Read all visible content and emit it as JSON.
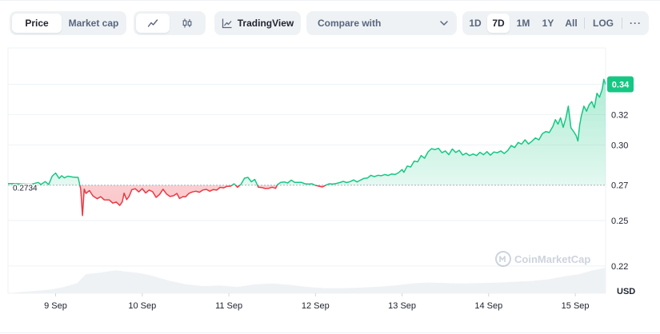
{
  "toolbar": {
    "price_label": "Price",
    "market_cap_label": "Market cap",
    "tradingview_label": "TradingView",
    "compare_label": "Compare with",
    "ranges": [
      "1D",
      "7D",
      "1M",
      "1Y",
      "All"
    ],
    "active_range": "7D",
    "log_label": "LOG",
    "more_label": "···",
    "icons": {
      "line": "line-chart-icon",
      "candle": "candlestick-icon",
      "tradingview": "tradingview-chart-icon",
      "dropdown": "chevron-down-icon"
    }
  },
  "watermark": "CoinMarketCap",
  "chart_data": {
    "type": "area",
    "currency_label": "USD",
    "baseline_label": "0.2734",
    "baseline": 0.2734,
    "current_label": "0.34",
    "ylim": [
      0.202,
      0.364
    ],
    "y_ticks": [
      {
        "value": 0.34,
        "label": "0.34"
      },
      {
        "value": 0.32,
        "label": "0.32"
      },
      {
        "value": 0.3,
        "label": "0.30"
      },
      {
        "value": 0.2734,
        "label": "0.27"
      },
      {
        "value": 0.25,
        "label": "0.25"
      },
      {
        "value": 0.22,
        "label": "0.22"
      }
    ],
    "x_ticks": [
      "9 Sep",
      "10 Sep",
      "11 Sep",
      "12 Sep",
      "13 Sep",
      "14 Sep",
      "15 Sep"
    ],
    "x_tick_pos": [
      0.5,
      1.5,
      2.5,
      3.5,
      4.5,
      5.5,
      6.5
    ],
    "xlim": [
      -0.05,
      6.85
    ],
    "price": [
      [
        -0.05,
        0.2744
      ],
      [
        0.0,
        0.2744
      ],
      [
        0.12,
        0.2742
      ],
      [
        0.22,
        0.274
      ],
      [
        0.3,
        0.2752
      ],
      [
        0.33,
        0.2738
      ],
      [
        0.38,
        0.2757
      ],
      [
        0.42,
        0.2738
      ],
      [
        0.46,
        0.2793
      ],
      [
        0.5,
        0.2814
      ],
      [
        0.54,
        0.2779
      ],
      [
        0.57,
        0.2796
      ],
      [
        0.6,
        0.2782
      ],
      [
        0.64,
        0.2793
      ],
      [
        0.7,
        0.2787
      ],
      [
        0.76,
        0.2785
      ],
      [
        0.79,
        0.2707
      ],
      [
        0.81,
        0.2533
      ],
      [
        0.83,
        0.2708
      ],
      [
        0.85,
        0.2679
      ],
      [
        0.89,
        0.2698
      ],
      [
        0.93,
        0.2663
      ],
      [
        0.98,
        0.2644
      ],
      [
        1.02,
        0.2658
      ],
      [
        1.06,
        0.2637
      ],
      [
        1.12,
        0.2636
      ],
      [
        1.16,
        0.2615
      ],
      [
        1.2,
        0.2622
      ],
      [
        1.24,
        0.26
      ],
      [
        1.27,
        0.2624
      ],
      [
        1.29,
        0.2681
      ],
      [
        1.32,
        0.2638
      ],
      [
        1.35,
        0.2662
      ],
      [
        1.38,
        0.2704
      ],
      [
        1.42,
        0.271
      ],
      [
        1.46,
        0.2689
      ],
      [
        1.5,
        0.2711
      ],
      [
        1.54,
        0.2682
      ],
      [
        1.58,
        0.2702
      ],
      [
        1.62,
        0.269
      ],
      [
        1.66,
        0.2653
      ],
      [
        1.7,
        0.2673
      ],
      [
        1.74,
        0.2707
      ],
      [
        1.78,
        0.2676
      ],
      [
        1.82,
        0.2659
      ],
      [
        1.86,
        0.2664
      ],
      [
        1.9,
        0.2679
      ],
      [
        1.93,
        0.2646
      ],
      [
        1.97,
        0.2658
      ],
      [
        2.0,
        0.2657
      ],
      [
        2.04,
        0.268
      ],
      [
        2.08,
        0.2689
      ],
      [
        2.12,
        0.2694
      ],
      [
        2.16,
        0.2687
      ],
      [
        2.2,
        0.2702
      ],
      [
        2.24,
        0.2706
      ],
      [
        2.28,
        0.2694
      ],
      [
        2.32,
        0.2705
      ],
      [
        2.36,
        0.2701
      ],
      [
        2.4,
        0.2719
      ],
      [
        2.44,
        0.2716
      ],
      [
        2.48,
        0.2726
      ],
      [
        2.52,
        0.2727
      ],
      [
        2.56,
        0.2743
      ],
      [
        2.6,
        0.272
      ],
      [
        2.64,
        0.2739
      ],
      [
        2.68,
        0.278
      ],
      [
        2.72,
        0.2785
      ],
      [
        2.76,
        0.2756
      ],
      [
        2.8,
        0.2772
      ],
      [
        2.84,
        0.272
      ],
      [
        2.88,
        0.2718
      ],
      [
        2.92,
        0.2712
      ],
      [
        2.96,
        0.2713
      ],
      [
        3.0,
        0.272
      ],
      [
        3.04,
        0.2713
      ],
      [
        3.06,
        0.2737
      ],
      [
        3.1,
        0.2752
      ],
      [
        3.14,
        0.2755
      ],
      [
        3.18,
        0.2748
      ],
      [
        3.22,
        0.2767
      ],
      [
        3.26,
        0.2752
      ],
      [
        3.3,
        0.2752
      ],
      [
        3.34,
        0.2752
      ],
      [
        3.38,
        0.2743
      ],
      [
        3.42,
        0.2741
      ],
      [
        3.46,
        0.2743
      ],
      [
        3.5,
        0.2733
      ],
      [
        3.54,
        0.2727
      ],
      [
        3.58,
        0.2722
      ],
      [
        3.62,
        0.2734
      ],
      [
        3.66,
        0.2743
      ],
      [
        3.7,
        0.2741
      ],
      [
        3.74,
        0.2745
      ],
      [
        3.78,
        0.2751
      ],
      [
        3.82,
        0.2759
      ],
      [
        3.86,
        0.2751
      ],
      [
        3.9,
        0.2757
      ],
      [
        3.94,
        0.2768
      ],
      [
        3.98,
        0.2755
      ],
      [
        4.02,
        0.2767
      ],
      [
        4.06,
        0.2779
      ],
      [
        4.1,
        0.2781
      ],
      [
        4.14,
        0.2799
      ],
      [
        4.18,
        0.279
      ],
      [
        4.22,
        0.2799
      ],
      [
        4.26,
        0.2796
      ],
      [
        4.3,
        0.2804
      ],
      [
        4.34,
        0.2798
      ],
      [
        4.38,
        0.2808
      ],
      [
        4.42,
        0.2804
      ],
      [
        4.46,
        0.2817
      ],
      [
        4.5,
        0.2837
      ],
      [
        4.52,
        0.2819
      ],
      [
        4.56,
        0.286
      ],
      [
        4.6,
        0.2854
      ],
      [
        4.64,
        0.2893
      ],
      [
        4.68,
        0.2888
      ],
      [
        4.72,
        0.2929
      ],
      [
        4.76,
        0.2912
      ],
      [
        4.8,
        0.2954
      ],
      [
        4.84,
        0.2975
      ],
      [
        4.88,
        0.2969
      ],
      [
        4.92,
        0.2977
      ],
      [
        4.96,
        0.2948
      ],
      [
        5.0,
        0.296
      ],
      [
        5.04,
        0.2935
      ],
      [
        5.08,
        0.2973
      ],
      [
        5.12,
        0.295
      ],
      [
        5.16,
        0.2964
      ],
      [
        5.2,
        0.2933
      ],
      [
        5.24,
        0.2945
      ],
      [
        5.28,
        0.2929
      ],
      [
        5.32,
        0.294
      ],
      [
        5.36,
        0.2929
      ],
      [
        5.4,
        0.2951
      ],
      [
        5.44,
        0.2935
      ],
      [
        5.48,
        0.2955
      ],
      [
        5.52,
        0.2932
      ],
      [
        5.56,
        0.2953
      ],
      [
        5.6,
        0.2948
      ],
      [
        5.64,
        0.296
      ],
      [
        5.68,
        0.2943
      ],
      [
        5.72,
        0.2963
      ],
      [
        5.76,
        0.2995
      ],
      [
        5.8,
        0.2982
      ],
      [
        5.84,
        0.3016
      ],
      [
        5.88,
        0.3005
      ],
      [
        5.92,
        0.3033
      ],
      [
        5.96,
        0.3006
      ],
      [
        6.0,
        0.3024
      ],
      [
        6.04,
        0.3046
      ],
      [
        6.08,
        0.3033
      ],
      [
        6.12,
        0.3074
      ],
      [
        6.16,
        0.3088
      ],
      [
        6.2,
        0.3081
      ],
      [
        6.24,
        0.3121
      ],
      [
        6.27,
        0.3166
      ],
      [
        6.3,
        0.3137
      ],
      [
        6.33,
        0.3179
      ],
      [
        6.36,
        0.3116
      ],
      [
        6.39,
        0.3174
      ],
      [
        6.42,
        0.3256
      ],
      [
        6.45,
        0.3112
      ],
      [
        6.48,
        0.3089
      ],
      [
        6.51,
        0.3061
      ],
      [
        6.53,
        0.3025
      ],
      [
        6.55,
        0.3128
      ],
      [
        6.57,
        0.3192
      ],
      [
        6.6,
        0.3256
      ],
      [
        6.63,
        0.3222
      ],
      [
        6.66,
        0.3265
      ],
      [
        6.69,
        0.3286
      ],
      [
        6.72,
        0.3245
      ],
      [
        6.75,
        0.3341
      ],
      [
        6.78,
        0.3315
      ],
      [
        6.81,
        0.3366
      ],
      [
        6.83,
        0.3433
      ],
      [
        6.85,
        0.34
      ]
    ],
    "volume": [
      [
        -0.05,
        0.0
      ],
      [
        0.1,
        0.05
      ],
      [
        0.3,
        0.1
      ],
      [
        0.45,
        0.15
      ],
      [
        0.6,
        0.25
      ],
      [
        0.75,
        0.4
      ],
      [
        0.85,
        0.75
      ],
      [
        1.0,
        0.8
      ],
      [
        1.1,
        0.85
      ],
      [
        1.2,
        0.9
      ],
      [
        1.3,
        0.85
      ],
      [
        1.45,
        0.8
      ],
      [
        1.6,
        0.7
      ],
      [
        1.8,
        0.5
      ],
      [
        2.0,
        0.35
      ],
      [
        2.2,
        0.28
      ],
      [
        2.4,
        0.3
      ],
      [
        2.6,
        0.25
      ],
      [
        2.8,
        0.35
      ],
      [
        3.0,
        0.38
      ],
      [
        3.2,
        0.33
      ],
      [
        3.4,
        0.25
      ],
      [
        3.6,
        0.2
      ],
      [
        3.8,
        0.2
      ],
      [
        4.0,
        0.22
      ],
      [
        4.2,
        0.25
      ],
      [
        4.4,
        0.3
      ],
      [
        4.6,
        0.38
      ],
      [
        4.8,
        0.42
      ],
      [
        5.0,
        0.4
      ],
      [
        5.2,
        0.38
      ],
      [
        5.4,
        0.4
      ],
      [
        5.6,
        0.42
      ],
      [
        5.8,
        0.45
      ],
      [
        6.0,
        0.48
      ],
      [
        6.2,
        0.55
      ],
      [
        6.4,
        0.68
      ],
      [
        6.55,
        0.75
      ],
      [
        6.7,
        0.9
      ],
      [
        6.85,
        1.0
      ]
    ],
    "colors": {
      "up": "#16c784",
      "down": "#ea3943",
      "grid": "#eff2f5",
      "axis_text": "#222531",
      "baseline_label_bg": "#ffffff",
      "volume": "#eff2f5"
    }
  }
}
